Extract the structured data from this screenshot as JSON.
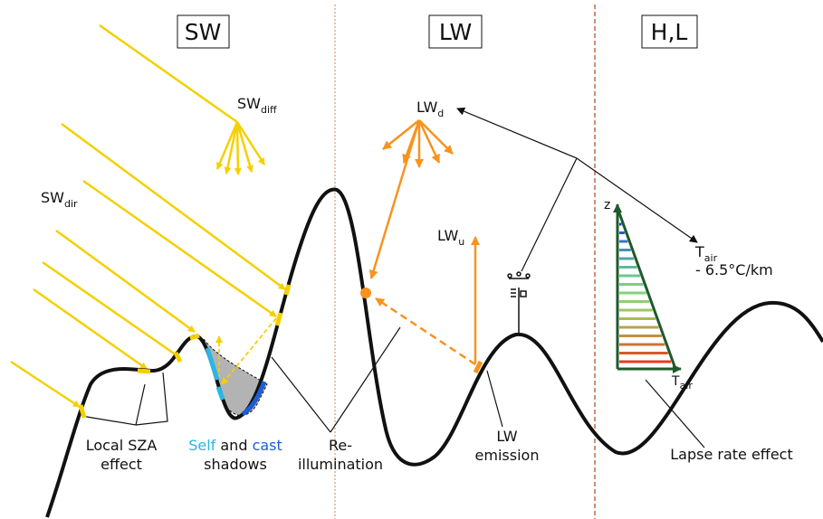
{
  "sections": [
    "SW",
    "LW",
    "H,L"
  ],
  "fluxes": {
    "sw_diffuse": {
      "symbol": "SW",
      "subscript": "diff"
    },
    "sw_direct": {
      "symbol": "SW",
      "subscript": "dir"
    },
    "lw_down": {
      "symbol": "LW",
      "subscript": "d"
    },
    "lw_up": {
      "symbol": "LW",
      "subscript": "u"
    }
  },
  "air_temperature": {
    "symbol": "T",
    "subscript": "air",
    "lapse": "- 6.5°C/km"
  },
  "profile_axes": {
    "vertical": "z",
    "horizontal": {
      "symbol": "T",
      "subscript": "air"
    }
  },
  "annotations": {
    "local_sza": [
      "Local SZA",
      "effect"
    ],
    "shadows": {
      "self": "Self",
      "and": "and",
      "cast": "cast",
      "line2": "shadows"
    },
    "reillumination": [
      "Re-",
      "illumination"
    ],
    "lw_emission": [
      "LW",
      "emission"
    ],
    "lapse_rate": "Lapse rate effect"
  }
}
